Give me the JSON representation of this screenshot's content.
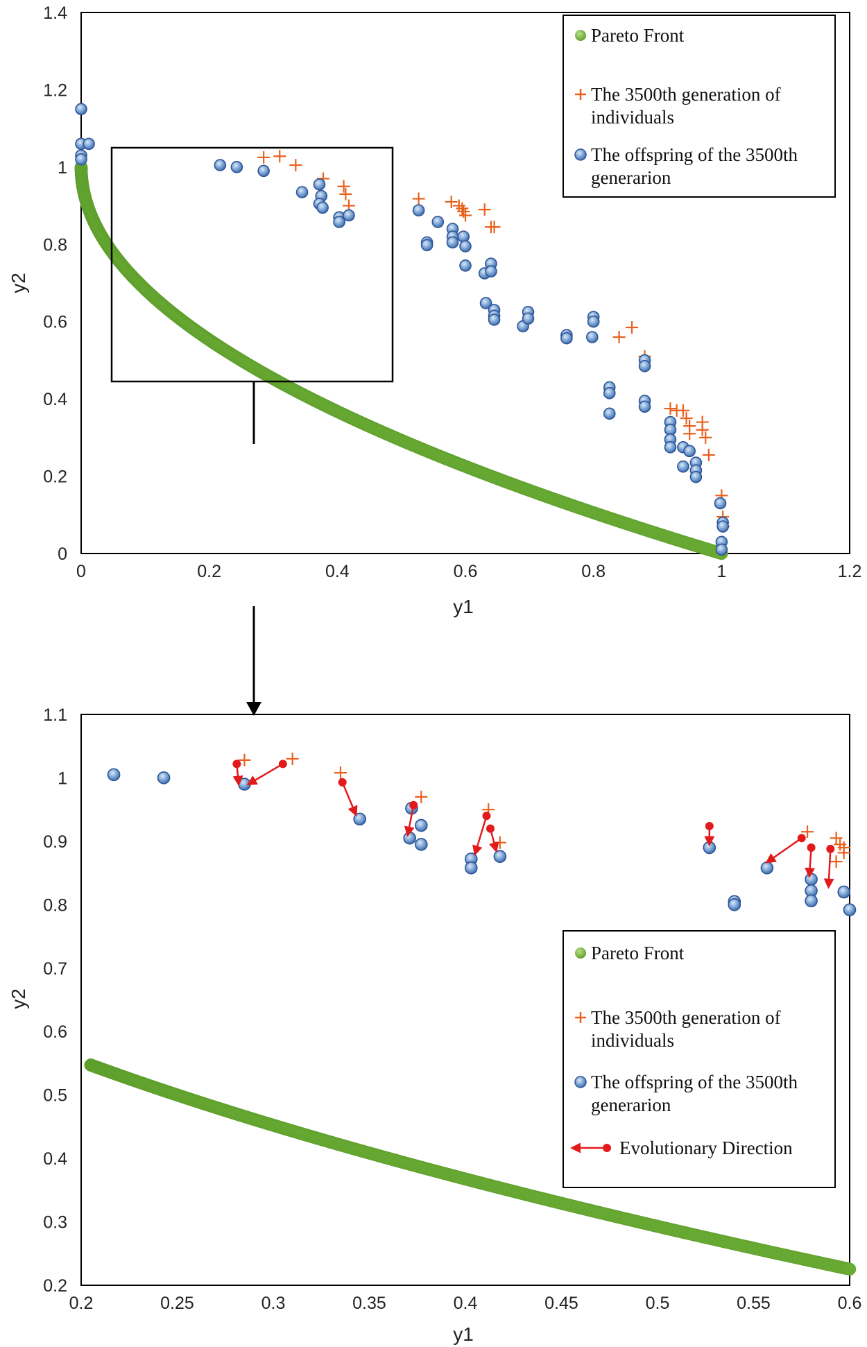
{
  "chart_data": [
    {
      "type": "scatter",
      "name": "main",
      "xlabel": "y1",
      "ylabel": "y2",
      "xlim": [
        0,
        1.2
      ],
      "ylim": [
        0,
        1.4
      ],
      "xticks": [
        "0",
        "0.2",
        "0.4",
        "0.6",
        "0.8",
        "1",
        "1.2"
      ],
      "yticks": [
        "0",
        "0.2",
        "0.4",
        "0.6",
        "0.8",
        "1",
        "1.2",
        "1.4"
      ],
      "xtick_values": [
        0,
        0.2,
        0.4,
        0.6,
        0.8,
        1.0,
        1.2
      ],
      "ytick_values": [
        0,
        0.2,
        0.4,
        0.6,
        0.8,
        1.0,
        1.2,
        1.4
      ],
      "legend": [
        {
          "marker": "green-dot",
          "lines": [
            "Pareto Front"
          ]
        },
        {
          "marker": "orange-plus",
          "lines": [
            "The 3500th generation of",
            "individuals"
          ]
        },
        {
          "marker": "blue-circle",
          "lines": [
            "The offspring of the 3500th",
            "generarion"
          ]
        }
      ],
      "pareto_front": {
        "function": "y2 = 1 - sqrt(y1)",
        "x_range": [
          0,
          1
        ]
      },
      "zoom_box": {
        "x": [
          0.05,
          0.49
        ],
        "y": [
          0.44,
          1.045
        ]
      },
      "series": [
        {
          "name": "The 3500th generation of individuals",
          "marker": "plus",
          "color": "#e8601c",
          "points": [
            [
              0.285,
              1.025
            ],
            [
              0.31,
              1.028
            ],
            [
              0.335,
              1.005
            ],
            [
              0.378,
              0.97
            ],
            [
              0.41,
              0.95
            ],
            [
              0.413,
              0.93
            ],
            [
              0.418,
              0.9
            ],
            [
              0.527,
              0.918
            ],
            [
              0.578,
              0.91
            ],
            [
              0.59,
              0.9
            ],
            [
              0.595,
              0.893
            ],
            [
              0.597,
              0.885
            ],
            [
              0.6,
              0.875
            ],
            [
              0.63,
              0.89
            ],
            [
              0.64,
              0.845
            ],
            [
              0.645,
              0.845
            ],
            [
              0.84,
              0.56
            ],
            [
              0.86,
              0.585
            ],
            [
              0.88,
              0.51
            ],
            [
              0.92,
              0.375
            ],
            [
              0.93,
              0.37
            ],
            [
              0.94,
              0.37
            ],
            [
              0.945,
              0.35
            ],
            [
              0.95,
              0.33
            ],
            [
              0.95,
              0.31
            ],
            [
              0.97,
              0.34
            ],
            [
              0.97,
              0.32
            ],
            [
              0.975,
              0.3
            ],
            [
              0.98,
              0.255
            ],
            [
              1.0,
              0.15
            ],
            [
              1.002,
              0.095
            ],
            [
              1.003,
              0.07
            ]
          ]
        },
        {
          "name": "The offspring of the 3500th generarion",
          "marker": "circle",
          "color": "#4f81bd",
          "points": [
            [
              0.0,
              1.15
            ],
            [
              0.0,
              1.06
            ],
            [
              0.0,
              1.03
            ],
            [
              0.0,
              1.02
            ],
            [
              0.012,
              1.06
            ],
            [
              0.217,
              1.005
            ],
            [
              0.243,
              1.0
            ],
            [
              0.285,
              0.99
            ],
            [
              0.345,
              0.935
            ],
            [
              0.372,
              0.955
            ],
            [
              0.375,
              0.925
            ],
            [
              0.372,
              0.905
            ],
            [
              0.377,
              0.895
            ],
            [
              0.403,
              0.87
            ],
            [
              0.403,
              0.858
            ],
            [
              0.418,
              0.875
            ],
            [
              0.527,
              0.888
            ],
            [
              0.54,
              0.805
            ],
            [
              0.54,
              0.798
            ],
            [
              0.557,
              0.858
            ],
            [
              0.58,
              0.84
            ],
            [
              0.58,
              0.82
            ],
            [
              0.58,
              0.805
            ],
            [
              0.597,
              0.82
            ],
            [
              0.6,
              0.795
            ],
            [
              0.6,
              0.745
            ],
            [
              0.63,
              0.725
            ],
            [
              0.64,
              0.75
            ],
            [
              0.64,
              0.73
            ],
            [
              0.632,
              0.648
            ],
            [
              0.645,
              0.63
            ],
            [
              0.645,
              0.615
            ],
            [
              0.645,
              0.605
            ],
            [
              0.69,
              0.588
            ],
            [
              0.698,
              0.625
            ],
            [
              0.698,
              0.608
            ],
            [
              0.758,
              0.565
            ],
            [
              0.758,
              0.557
            ],
            [
              0.8,
              0.612
            ],
            [
              0.8,
              0.6
            ],
            [
              0.798,
              0.56
            ],
            [
              0.825,
              0.43
            ],
            [
              0.825,
              0.415
            ],
            [
              0.825,
              0.362
            ],
            [
              0.88,
              0.5
            ],
            [
              0.88,
              0.485
            ],
            [
              0.88,
              0.395
            ],
            [
              0.88,
              0.38
            ],
            [
              0.92,
              0.34
            ],
            [
              0.92,
              0.32
            ],
            [
              0.92,
              0.295
            ],
            [
              0.92,
              0.275
            ],
            [
              0.94,
              0.275
            ],
            [
              0.94,
              0.225
            ],
            [
              0.95,
              0.265
            ],
            [
              0.96,
              0.235
            ],
            [
              0.96,
              0.215
            ],
            [
              0.96,
              0.198
            ],
            [
              0.998,
              0.13
            ],
            [
              1.002,
              0.08
            ],
            [
              1.002,
              0.07
            ],
            [
              1.0,
              0.03
            ],
            [
              1.0,
              0.01
            ]
          ]
        }
      ]
    },
    {
      "type": "scatter",
      "name": "zoom",
      "xlabel": "y1",
      "ylabel": "y2",
      "xlim": [
        0.2,
        0.6
      ],
      "ylim": [
        0.2,
        1.1
      ],
      "xticks": [
        "0.2",
        "0.25",
        "0.3",
        "0.35",
        "0.4",
        "0.45",
        "0.5",
        "0.55",
        "0.6"
      ],
      "yticks": [
        "0.2",
        "0.3",
        "0.4",
        "0.5",
        "0.6",
        "0.7",
        "0.8",
        "0.9",
        "1",
        "1.1"
      ],
      "xtick_values": [
        0.2,
        0.25,
        0.3,
        0.35,
        0.4,
        0.45,
        0.5,
        0.55,
        0.6
      ],
      "ytick_values": [
        0.2,
        0.3,
        0.4,
        0.5,
        0.6,
        0.7,
        0.8,
        0.9,
        1.0,
        1.1
      ],
      "legend": [
        {
          "marker": "green-dot",
          "lines": [
            "Pareto Front"
          ]
        },
        {
          "marker": "orange-plus",
          "lines": [
            "The 3500th generation of",
            "individuals"
          ]
        },
        {
          "marker": "blue-circle",
          "lines": [
            "The offspring of the 3500th",
            "generarion"
          ]
        },
        {
          "marker": "red-arrow",
          "lines": [
            "Evolutionary Direction"
          ]
        }
      ],
      "pareto_front": {
        "function": "y2 = 1 - sqrt(y1)",
        "x_range": [
          0.205,
          0.6
        ]
      },
      "series": [
        {
          "name": "The 3500th generation of individuals",
          "marker": "plus",
          "color": "#e8601c",
          "points": [
            [
              0.285,
              1.028
            ],
            [
              0.31,
              1.03
            ],
            [
              0.335,
              1.008
            ],
            [
              0.377,
              0.97
            ],
            [
              0.412,
              0.95
            ],
            [
              0.418,
              0.898
            ],
            [
              0.578,
              0.915
            ],
            [
              0.593,
              0.905
            ],
            [
              0.595,
              0.895
            ],
            [
              0.597,
              0.89
            ],
            [
              0.597,
              0.882
            ],
            [
              0.593,
              0.868
            ]
          ]
        },
        {
          "name": "The offspring of the 3500th generarion",
          "marker": "circle",
          "color": "#4f81bd",
          "points": [
            [
              0.217,
              1.005
            ],
            [
              0.243,
              1.0
            ],
            [
              0.285,
              0.99
            ],
            [
              0.345,
              0.935
            ],
            [
              0.372,
              0.952
            ],
            [
              0.377,
              0.925
            ],
            [
              0.371,
              0.905
            ],
            [
              0.377,
              0.895
            ],
            [
              0.403,
              0.872
            ],
            [
              0.403,
              0.858
            ],
            [
              0.418,
              0.876
            ],
            [
              0.527,
              0.89
            ],
            [
              0.54,
              0.805
            ],
            [
              0.54,
              0.8
            ],
            [
              0.557,
              0.858
            ],
            [
              0.58,
              0.84
            ],
            [
              0.58,
              0.822
            ],
            [
              0.58,
              0.806
            ],
            [
              0.597,
              0.82
            ],
            [
              0.6,
              0.792
            ]
          ]
        },
        {
          "name": "Evolutionary Direction",
          "marker": "arrow",
          "color": "#e31a1c",
          "arrows": [
            [
              0.281,
              1.022,
              0.282,
              0.99
            ],
            [
              0.305,
              1.022,
              0.287,
              0.99
            ],
            [
              0.336,
              0.993,
              0.343,
              0.942
            ],
            [
              0.373,
              0.957,
              0.37,
              0.91
            ],
            [
              0.411,
              0.94,
              0.405,
              0.88
            ],
            [
              0.413,
              0.92,
              0.416,
              0.885
            ],
            [
              0.527,
              0.924,
              0.527,
              0.895
            ],
            [
              0.575,
              0.905,
              0.557,
              0.867
            ],
            [
              0.58,
              0.89,
              0.579,
              0.845
            ],
            [
              0.59,
              0.888,
              0.589,
              0.828
            ]
          ]
        }
      ]
    }
  ]
}
